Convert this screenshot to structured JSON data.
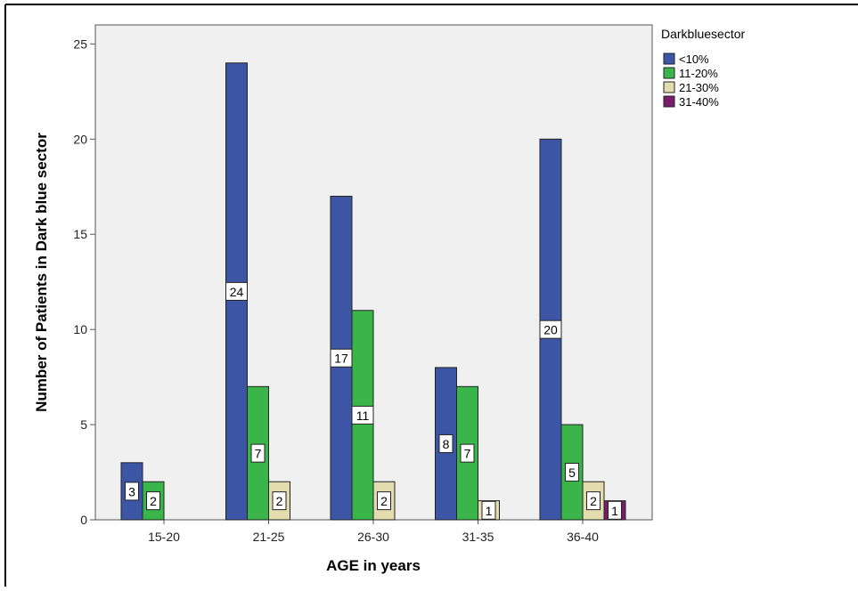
{
  "chart_data": {
    "type": "bar",
    "title": "",
    "xlabel": "AGE in years",
    "ylabel": "Number of Patients in Dark blue sector",
    "categories": [
      "15-20",
      "21-25",
      "26-30",
      "31-35",
      "36-40"
    ],
    "ylim": [
      0,
      26
    ],
    "yticks": [
      0,
      5,
      10,
      15,
      20,
      25
    ],
    "legend_title": "Darkbluesector",
    "legend_position": "right",
    "series": [
      {
        "name": "<10%",
        "color": "#3c55a5",
        "values": [
          3,
          24,
          17,
          8,
          20
        ]
      },
      {
        "name": "11-20%",
        "color": "#3ab54a",
        "values": [
          2,
          7,
          11,
          7,
          5
        ]
      },
      {
        "name": "21-30%",
        "color": "#e2dcae",
        "values": [
          null,
          2,
          2,
          1,
          2
        ]
      },
      {
        "name": "31-40%",
        "color": "#7a1c6c",
        "values": [
          null,
          null,
          null,
          null,
          1
        ]
      }
    ],
    "data_labels": true,
    "plot_background": "#f0f0f0"
  }
}
